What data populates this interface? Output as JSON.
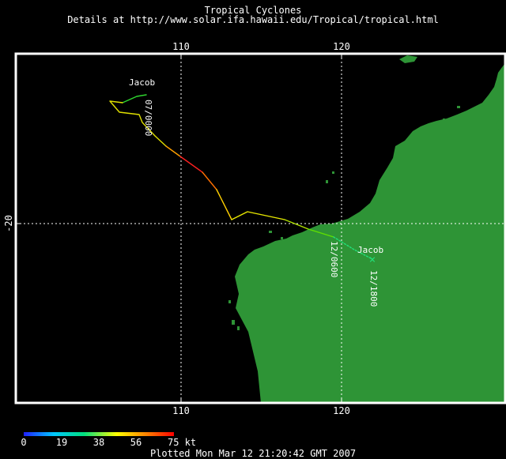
{
  "header": {
    "title": "Tropical Cyclones",
    "subtitle": "Details at http://www.solar.ifa.hawaii.edu/Tropical/tropical.html"
  },
  "map": {
    "longitude_ticks": [
      "110",
      "120"
    ],
    "latitude_ticks": [
      "-20"
    ],
    "grid": true,
    "land_color": "#2e9436",
    "ocean_color": "#000000",
    "frame_color": "#ffffff",
    "grid_color": "#ffffff"
  },
  "storms": [
    {
      "name": "Jacob",
      "labels": [
        "Jacob",
        "Jacob"
      ],
      "time_labels": [
        "07/0000",
        "12/0600",
        "12/1800"
      ],
      "current_marker": "×",
      "current_marker_color": "#22e07a"
    }
  ],
  "legend": {
    "tick_labels": [
      "0",
      "19",
      "38",
      "56",
      "75 kt"
    ],
    "gradient_colors": [
      "#2020ff",
      "#00c8ff",
      "#00e080",
      "#ffff00",
      "#ff8000",
      "#ff0000"
    ]
  },
  "footer": {
    "plotted": "Plotted Mon Mar 12 21:20:42 GMT 2007"
  }
}
